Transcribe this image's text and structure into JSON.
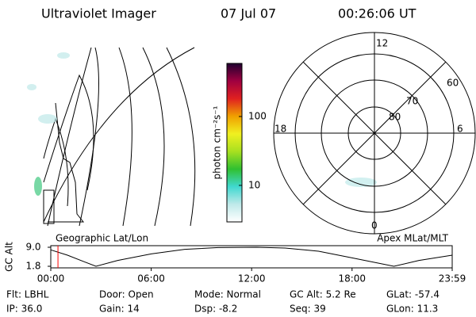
{
  "header": {
    "title": "Ultraviolet Imager",
    "date": "07 Jul 07",
    "time": "00:26:06 UT"
  },
  "colorbar": {
    "label": "photon cm⁻²s⁻¹",
    "range": [
      2.95,
      590
    ],
    "ticks": [
      10,
      100
    ],
    "log": true,
    "colors": [
      "#ffffff",
      "#bfe9e9",
      "#40d8d0",
      "#30c030",
      "#a8e020",
      "#f0f020",
      "#f0a000",
      "#e02020",
      "#a00040",
      "#200030"
    ]
  },
  "polar": {
    "mlt_labels": [
      "12",
      "18",
      "6",
      "0"
    ],
    "mlat_labels": [
      "60",
      "70",
      "80"
    ]
  },
  "panels": {
    "map_label": "Geographic Lat/Lon",
    "polar_label": "Apex MLat/MLT"
  },
  "chart_data": {
    "type": "line",
    "y_label": "GC Alt",
    "x": [
      0,
      1,
      2,
      2.7,
      4,
      6,
      8,
      10,
      12.3,
      14,
      16,
      18,
      20.5,
      22,
      23.983
    ],
    "series": [
      {
        "name": "GC Alt",
        "color": "#000000",
        "values": [
          8.0,
          6.0,
          3.5,
          1.8,
          4.0,
          6.5,
          8.2,
          8.9,
          9.0,
          8.7,
          7.5,
          5.0,
          1.8,
          4.0,
          6.0
        ]
      }
    ],
    "current_time": 0.43,
    "marker_color": "#ff0000",
    "xlim": [
      0,
      23.983
    ],
    "xticks": [
      {
        "value": 0,
        "label": "00:00"
      },
      {
        "value": 6,
        "label": "06:00"
      },
      {
        "value": 12,
        "label": "12:00"
      },
      {
        "value": 18,
        "label": "18:00"
      },
      {
        "value": 23.983,
        "label": "23:59"
      }
    ],
    "ylim": [
      1.8,
      9.0
    ],
    "yticks": [
      {
        "value": 9.0,
        "label": "9.0"
      },
      1.8
    ]
  },
  "info": [
    [
      "Flt: LBHL",
      "Door: Open",
      "Mode: Normal",
      "GC Alt: 5.2 Re",
      "GLat: -57.4"
    ],
    [
      "IP: 36.0",
      "Gain: 14",
      "Dsp:  -8.2",
      "Seq: 39",
      "GLon: 11.3"
    ]
  ]
}
